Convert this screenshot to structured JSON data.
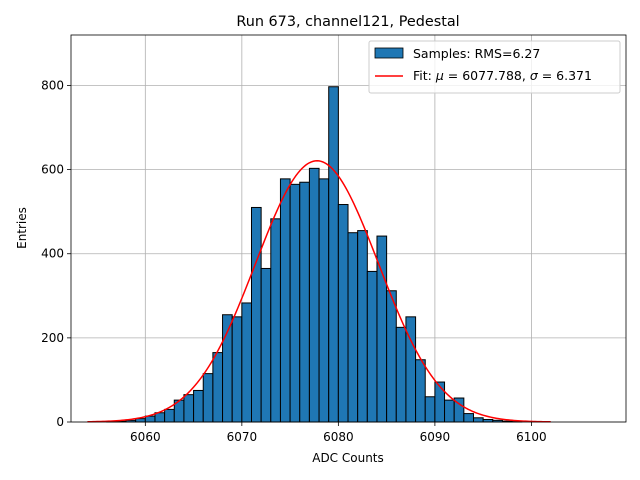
{
  "chart_data": {
    "type": "bar",
    "title": "Run 673, channel121, Pedestal",
    "xlabel": "ADC Counts",
    "ylabel": "Entries",
    "xlim": [
      6052.3,
      6109.8
    ],
    "ylim": [
      0,
      920
    ],
    "xticks": [
      6060,
      6070,
      6080,
      6090,
      6100
    ],
    "yticks": [
      0,
      200,
      400,
      600,
      800
    ],
    "grid": true,
    "legend_position": "top-right",
    "colors": {
      "bars": "#1f77b4",
      "bar_edge": "#000000",
      "fit": "#ff0000"
    },
    "histogram": {
      "name": "Samples: RMS=6.27",
      "bin_edges": [
        6054.0,
        6055.0,
        6056.0,
        6057.0,
        6058.0,
        6059.0,
        6060.0,
        6061.0,
        6062.0,
        6063.0,
        6064.0,
        6065.0,
        6066.0,
        6067.0,
        6068.0,
        6069.0,
        6070.0,
        6071.0,
        6072.0,
        6073.0,
        6074.0,
        6075.0,
        6076.0,
        6077.0,
        6078.0,
        6079.0,
        6080.0,
        6081.0,
        6082.0,
        6083.0,
        6084.0,
        6085.0,
        6086.0,
        6087.0,
        6088.0,
        6089.0,
        6090.0,
        6091.0,
        6092.0,
        6093.0,
        6094.0,
        6095.0,
        6096.0,
        6097.0,
        6098.0,
        6099.0,
        6100.0,
        6101.0,
        6102.0,
        6103.0,
        6104.0,
        6105.0,
        6106.0,
        6107.0,
        6108.0
      ],
      "counts": [
        0,
        0,
        1,
        2,
        4,
        8,
        14,
        22,
        30,
        52,
        65,
        75,
        115,
        165,
        255,
        250,
        283,
        510,
        365,
        483,
        578,
        565,
        570,
        603,
        578,
        797,
        517,
        450,
        455,
        358,
        442,
        312,
        225,
        250,
        148,
        60,
        95,
        52,
        57,
        20,
        10,
        6,
        4,
        2,
        1,
        0,
        0,
        0,
        0,
        0,
        0,
        0,
        0,
        0
      ]
    },
    "fit": {
      "name": "Fit: μ = 6077.788, σ = 6.371",
      "label_prefix": "Fit: ",
      "label_mu": "μ",
      "label_mu_value": " = 6077.788, ",
      "label_sigma": "σ",
      "label_sigma_value": " = 6.371",
      "mu": 6077.788,
      "sigma": 6.371,
      "amplitude": 621,
      "x_range": [
        6054,
        6102
      ]
    }
  }
}
